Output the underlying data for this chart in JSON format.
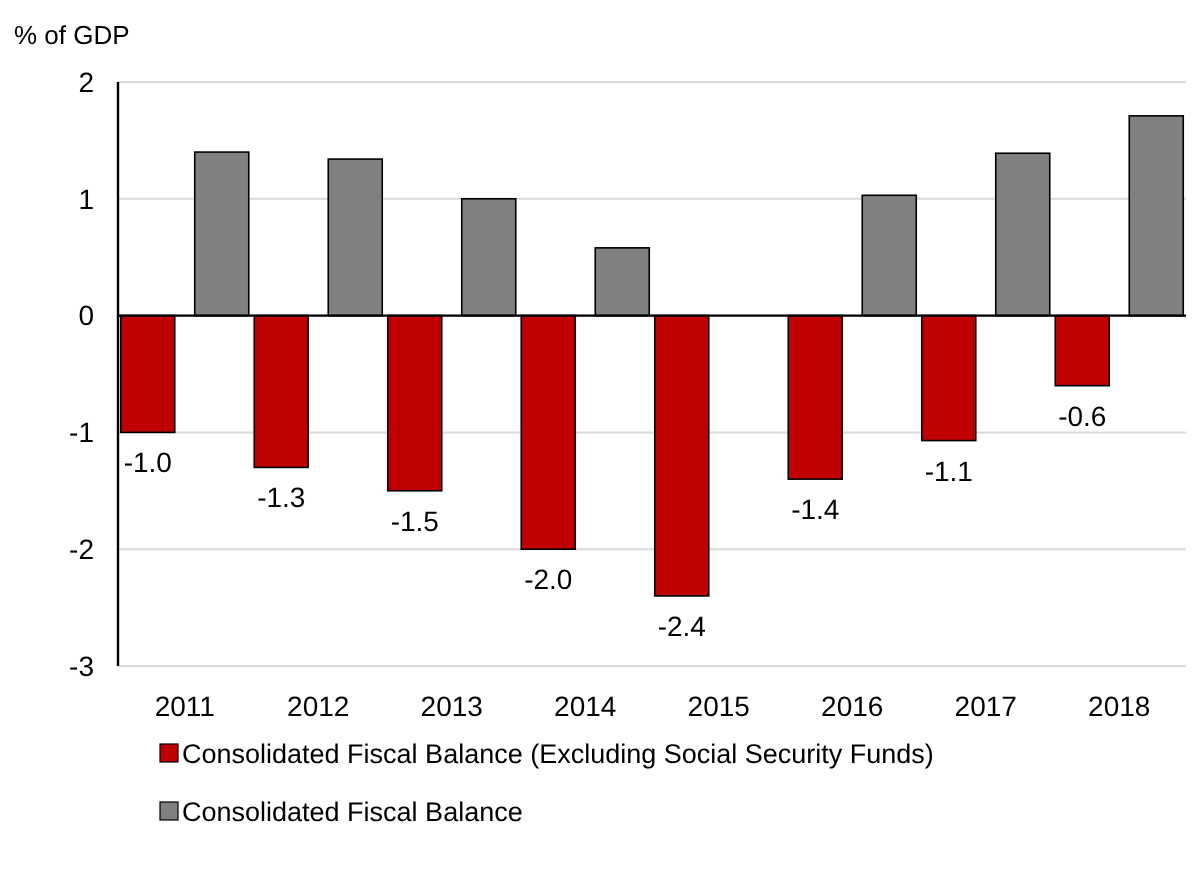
{
  "chart_data": {
    "type": "bar",
    "ylabel": "% of GDP",
    "categories": [
      "2011",
      "2012",
      "2013",
      "2014",
      "2015",
      "2016",
      "2017",
      "2018"
    ],
    "series": [
      {
        "name": "Consolidated Fiscal Balance (Excluding Social Security Funds)",
        "color": "#c00000",
        "values": [
          -1.0,
          -1.3,
          -1.5,
          -2.0,
          -2.4,
          -1.4,
          -1.07,
          -0.6
        ],
        "value_labels": [
          "-1.0",
          "-1.3",
          "-1.5",
          "-2.0",
          "-2.4",
          "-1.4",
          "-1.1",
          "-0.6"
        ]
      },
      {
        "name": "Consolidated Fiscal Balance",
        "color": "#808080",
        "values": [
          1.4,
          1.34,
          1.0,
          0.58,
          0.0,
          1.03,
          1.39,
          1.71
        ]
      }
    ],
    "ylim": [
      -3,
      2
    ],
    "yticks": [
      -3,
      -2,
      -1,
      0,
      1,
      2
    ],
    "grid": "y",
    "legend": "bottom"
  }
}
